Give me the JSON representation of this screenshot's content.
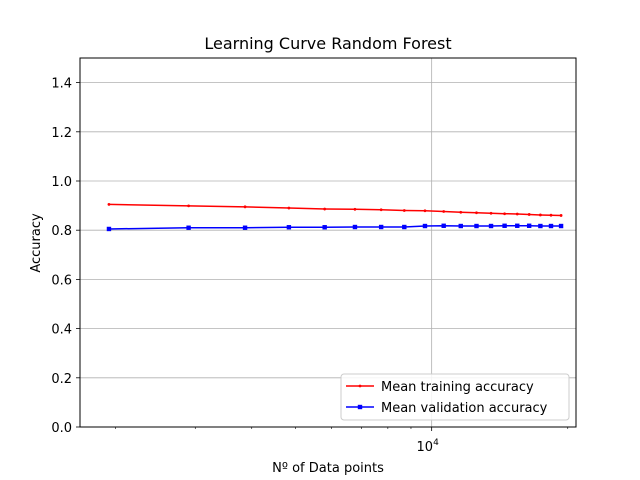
{
  "chart_data": {
    "type": "line",
    "title": "Learning Curve Random Forest",
    "xlabel": "Nº of Data points",
    "ylabel": "Accuracy",
    "xscale": "log",
    "xlim": [
      1668,
      20857
    ],
    "ylim": [
      0,
      1.5
    ],
    "yticks": [
      0.0,
      0.2,
      0.4,
      0.6,
      0.8,
      1.0,
      1.2,
      1.4
    ],
    "ytick_labels": [
      "0.0",
      "0.2",
      "0.4",
      "0.6",
      "0.8",
      "1.0",
      "1.2",
      "1.4"
    ],
    "xticks_major": [
      {
        "value": 10000,
        "base": "10",
        "exp": "4"
      }
    ],
    "xticks_minor": [
      2000,
      3000,
      4000,
      5000,
      6000,
      7000,
      8000,
      9000,
      20000
    ],
    "grid": true,
    "legend_position": "lower-right",
    "x": [
      1933,
      2900,
      3866,
      4833,
      5799,
      6766,
      7732,
      8699,
      9665,
      10632,
      11598,
      12565,
      13531,
      14498,
      15464,
      16431,
      17397,
      18364,
      19331
    ],
    "series": [
      {
        "name": "Mean training accuracy",
        "color": "#ff0000",
        "marker": "dot",
        "values": [
          0.905,
          0.899,
          0.895,
          0.89,
          0.886,
          0.885,
          0.883,
          0.88,
          0.879,
          0.876,
          0.873,
          0.871,
          0.869,
          0.867,
          0.866,
          0.864,
          0.862,
          0.861,
          0.86
        ]
      },
      {
        "name": "Mean validation accuracy",
        "color": "#0000ff",
        "marker": "square",
        "values": [
          0.805,
          0.81,
          0.81,
          0.812,
          0.812,
          0.813,
          0.813,
          0.813,
          0.817,
          0.818,
          0.817,
          0.817,
          0.817,
          0.818,
          0.818,
          0.818,
          0.817,
          0.817,
          0.817
        ]
      }
    ]
  }
}
